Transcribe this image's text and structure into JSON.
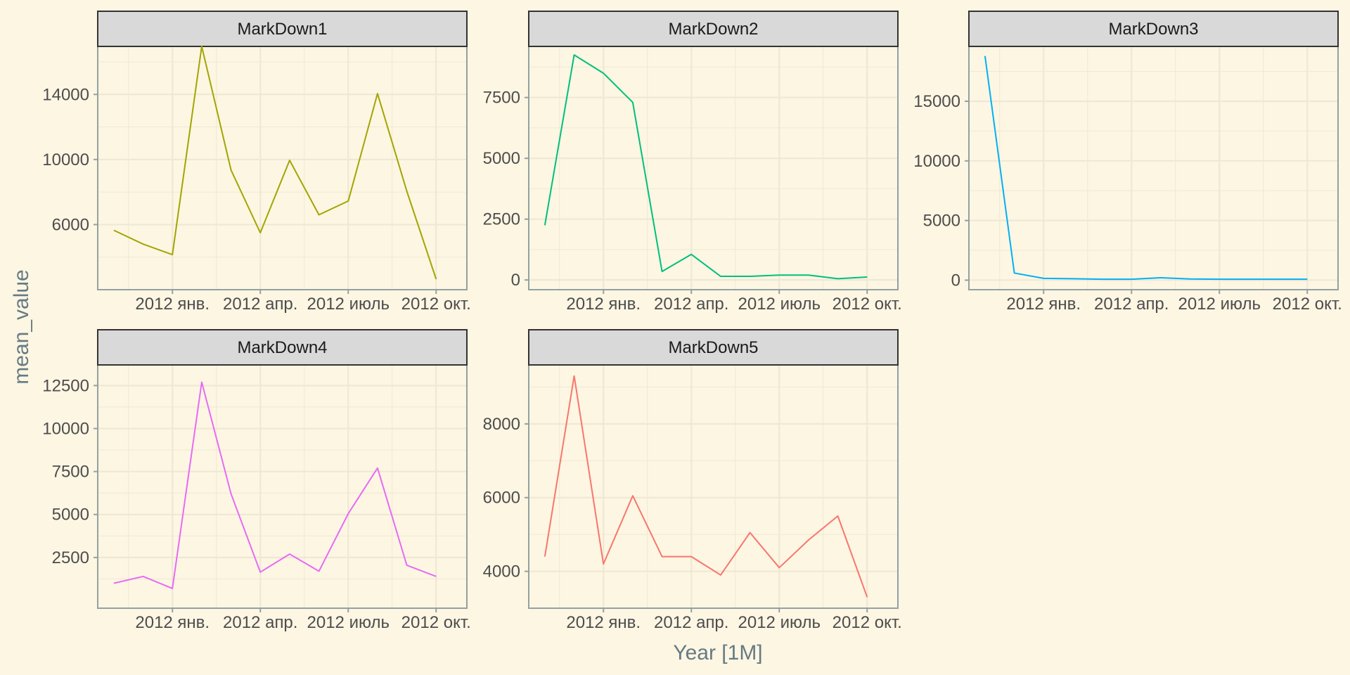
{
  "figure": {
    "xlabel": "Year [1M]",
    "ylabel": "mean_value",
    "x_ticks": [
      "2012 янв.",
      "2012 апр.",
      "2012 июль",
      "2012 окт."
    ],
    "x_range_months": [
      "2011-11",
      "2012-11"
    ],
    "grid": true,
    "background": "#fdf6e3",
    "strip_fill": "#d9d9d9",
    "grid_color": "#eee8d5"
  },
  "chart_data": [
    {
      "type": "line",
      "title": "MarkDown1",
      "color": "#a3a500",
      "x": [
        "2011-11",
        "2011-12",
        "2012-01",
        "2012-02",
        "2012-03",
        "2012-04",
        "2012-05",
        "2012-06",
        "2012-07",
        "2012-08",
        "2012-09",
        "2012-10"
      ],
      "values": [
        5650,
        4800,
        4150,
        16950,
        9350,
        5500,
        9950,
        6600,
        7450,
        14050,
        8050,
        2650
      ],
      "ylim": [
        2000,
        16950
      ],
      "y_ticks": [
        6000,
        10000,
        14000
      ],
      "y_tick_labels": [
        "6000",
        "10000",
        "14000"
      ]
    },
    {
      "type": "line",
      "title": "MarkDown2",
      "color": "#00bf7d",
      "x": [
        "2011-11",
        "2011-12",
        "2012-01",
        "2012-02",
        "2012-03",
        "2012-04",
        "2012-05",
        "2012-06",
        "2012-07",
        "2012-08",
        "2012-09",
        "2012-10"
      ],
      "values": [
        2250,
        9250,
        8500,
        7300,
        350,
        1050,
        150,
        150,
        200,
        200,
        50,
        120
      ],
      "ylim": [
        -400,
        9600
      ],
      "y_ticks": [
        0,
        2500,
        5000,
        7500
      ],
      "y_tick_labels": [
        "0",
        "2500",
        "5000",
        "7500"
      ]
    },
    {
      "type": "line",
      "title": "MarkDown3",
      "color": "#00b0f6",
      "x": [
        "2011-11",
        "2011-12",
        "2012-01",
        "2012-02",
        "2012-03",
        "2012-04",
        "2012-05",
        "2012-06",
        "2012-07",
        "2012-08",
        "2012-09",
        "2012-10"
      ],
      "values": [
        18800,
        600,
        150,
        120,
        80,
        80,
        200,
        100,
        80,
        80,
        80,
        80
      ],
      "ylim": [
        -800,
        19600
      ],
      "y_ticks": [
        0,
        5000,
        10000,
        15000
      ],
      "y_tick_labels": [
        "0",
        "5000",
        "10000",
        "15000"
      ]
    },
    {
      "type": "line",
      "title": "MarkDown4",
      "color": "#e76bf3",
      "x": [
        "2011-11",
        "2011-12",
        "2012-01",
        "2012-02",
        "2012-03",
        "2012-04",
        "2012-05",
        "2012-06",
        "2012-07",
        "2012-08",
        "2012-09",
        "2012-10"
      ],
      "values": [
        1000,
        1400,
        700,
        12700,
        6200,
        1650,
        2700,
        1700,
        5050,
        7700,
        2050,
        1400
      ],
      "ylim": [
        -450,
        13700
      ],
      "y_ticks": [
        2500,
        5000,
        7500,
        10000,
        12500
      ],
      "y_tick_labels": [
        "2500",
        "5000",
        "7500",
        "10000",
        "12500"
      ]
    },
    {
      "type": "line",
      "title": "MarkDown5",
      "color": "#f8766d",
      "x": [
        "2011-11",
        "2011-12",
        "2012-01",
        "2012-02",
        "2012-03",
        "2012-04",
        "2012-05",
        "2012-06",
        "2012-07",
        "2012-08",
        "2012-09",
        "2012-10"
      ],
      "values": [
        4400,
        9300,
        4200,
        6050,
        4400,
        4400,
        3900,
        5050,
        4100,
        4850,
        5500,
        3300
      ],
      "ylim": [
        3000,
        9600
      ],
      "y_ticks": [
        4000,
        6000,
        8000
      ],
      "y_tick_labels": [
        "4000",
        "6000",
        "8000"
      ]
    }
  ]
}
